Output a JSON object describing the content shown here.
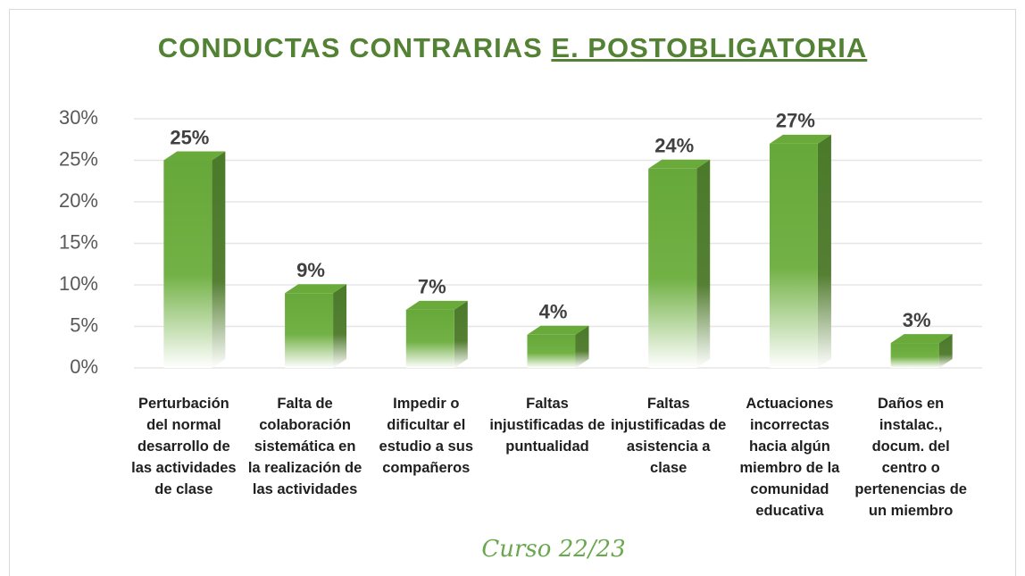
{
  "chart_data": {
    "type": "bar",
    "title": "CONDUCTAS CONTRARIAS",
    "title_underlined": "E. POSTOBLIGATORIA",
    "annotation": "Curso 22/23",
    "categories": [
      "Perturbación del normal desarrollo de las actividades de clase",
      "Falta de colaboración sistemática en la realización de las actividades",
      "Impedir o dificultar el estudio a sus compañeros",
      "Faltas injustificadas de puntualidad",
      "Faltas injustificadas de asistencia a clase",
      "Actuaciones incorrectas hacia algún miembro de la comunidad educativa",
      "Daños en instalac., docum. del centro o pertenencias de un miembro"
    ],
    "values": [
      25,
      9,
      7,
      4,
      24,
      27,
      3
    ],
    "value_labels": [
      "25%",
      "9%",
      "7%",
      "4%",
      "24%",
      "27%",
      "3%"
    ],
    "color": "#6aaa3a",
    "ylim": [
      0,
      30
    ],
    "yticks": [
      {
        "value": 0,
        "label": "0%"
      },
      {
        "value": 5,
        "label": "5%"
      },
      {
        "value": 10,
        "label": "10%"
      },
      {
        "value": 15,
        "label": "15%"
      },
      {
        "value": 20,
        "label": "20%"
      },
      {
        "value": 25,
        "label": "25%"
      },
      {
        "value": 30,
        "label": "30%"
      }
    ],
    "grid": true
  }
}
